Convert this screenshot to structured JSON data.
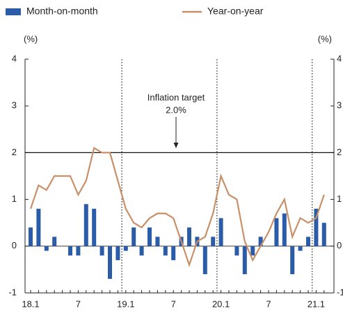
{
  "chart_data": {
    "type": "bar",
    "ylabel": "(%)",
    "y2label": "(%)",
    "ylim": [
      -1,
      4
    ],
    "yticks": [
      -1,
      0,
      1,
      2,
      3,
      4
    ],
    "y2lim": [
      -1,
      4
    ],
    "y2ticks": [
      -1,
      0,
      1,
      2,
      3,
      4
    ],
    "categories": [
      "18.1",
      null,
      null,
      null,
      null,
      null,
      "7",
      null,
      null,
      null,
      null,
      null,
      "19.1",
      null,
      null,
      null,
      null,
      null,
      "7",
      null,
      null,
      null,
      null,
      null,
      "20.1",
      null,
      null,
      null,
      null,
      null,
      "7",
      null,
      null,
      null,
      null,
      null,
      "21.1",
      null
    ],
    "series": [
      {
        "name": "Month-on-month",
        "type": "bar",
        "color": "#2b5ca8",
        "values": [
          0.4,
          0.8,
          -0.1,
          0.2,
          0,
          -0.2,
          -0.2,
          0.9,
          0.8,
          -0.2,
          -0.7,
          -0.3,
          -0.1,
          0.4,
          -0.2,
          0.4,
          0.2,
          -0.2,
          -0.3,
          0.2,
          0.4,
          0.2,
          -0.6,
          0.2,
          0.6,
          0,
          -0.2,
          -0.6,
          -0.2,
          0.2,
          0,
          0.6,
          0.7,
          -0.6,
          -0.1,
          0.2,
          0.8,
          0.5
        ]
      },
      {
        "name": "Year-on-year",
        "type": "line",
        "color": "#c98f68",
        "values": [
          0.8,
          1.3,
          1.2,
          1.5,
          1.5,
          1.5,
          1.1,
          1.4,
          2.1,
          2.0,
          2.0,
          1.4,
          0.8,
          0.5,
          0.4,
          0.6,
          0.7,
          0.7,
          0.6,
          0.1,
          -0.4,
          0.1,
          0.2,
          0.7,
          1.5,
          1.1,
          1.0,
          0.1,
          -0.3,
          0.0,
          0.3,
          0.7,
          1.0,
          0.2,
          0.6,
          0.5,
          0.6,
          1.1
        ]
      }
    ],
    "reference_line": 2,
    "annotation": {
      "line1": "Inflation target",
      "line2": "2.0%"
    }
  }
}
